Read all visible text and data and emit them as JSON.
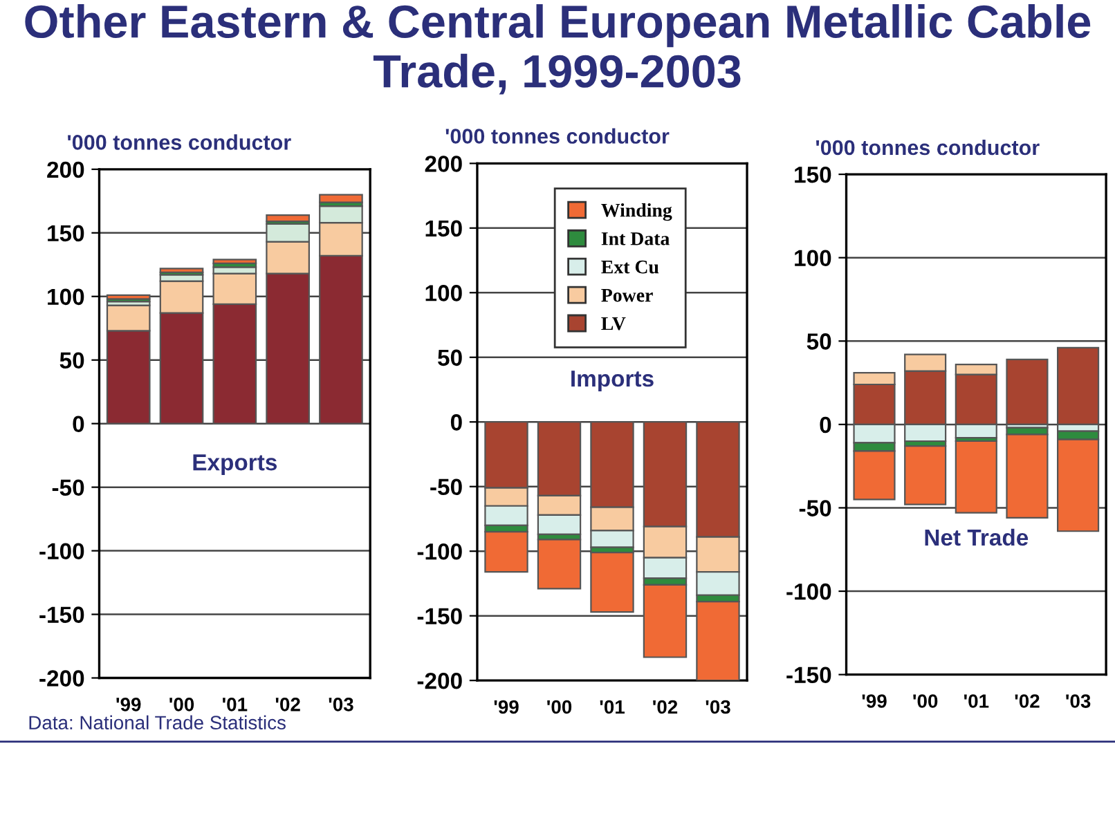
{
  "chart_data": [
    {
      "type": "bar",
      "title": "Other Eastern & Central European Metallic Cable Trade, 1999-2003",
      "ylabel": "'000 tonnes conductor",
      "categories": [
        "'99",
        "'00",
        "'01",
        "'02",
        "'03"
      ],
      "stacked": true,
      "ylim": [
        -200,
        200
      ],
      "yticks": [
        -200,
        -150,
        -100,
        -50,
        0,
        50,
        100,
        150,
        200
      ],
      "grid": "y",
      "legend": false,
      "series": [
        {
          "color": "#8b2a32",
          "values": [
            73,
            87,
            94,
            118,
            132
          ]
        },
        {
          "color": "#f8cba0",
          "values": [
            20,
            25,
            24,
            25,
            26
          ]
        },
        {
          "color": "#d4eadb",
          "values": [
            3,
            5,
            5,
            14,
            13
          ]
        },
        {
          "color": "#2e8b3e",
          "values": [
            2,
            2,
            3,
            2,
            3
          ]
        },
        {
          "color": "#f06a35",
          "values": [
            3,
            3,
            3,
            5,
            6
          ]
        }
      ],
      "annotations": [
        "Exports",
        "Data: National Trade Statistics"
      ]
    },
    {
      "type": "bar",
      "ylabel": "'000 tonnes conductor",
      "categories": [
        "'99",
        "'00",
        "'01",
        "'02",
        "'03"
      ],
      "stacked": true,
      "ylim": [
        -200,
        200
      ],
      "yticks": [
        -200,
        -150,
        -100,
        -50,
        0,
        50,
        100,
        150,
        200
      ],
      "grid": "y",
      "legend": "top",
      "series": [
        {
          "name": "LV",
          "color": "#a84430",
          "values": [
            -51,
            -57,
            -66,
            -81,
            -89
          ]
        },
        {
          "name": "Power",
          "color": "#f8cba0",
          "values": [
            -14,
            -15,
            -18,
            -24,
            -27
          ]
        },
        {
          "name": "Ext Cu",
          "color": "#d8eeea",
          "values": [
            -15,
            -15,
            -13,
            -16,
            -18
          ]
        },
        {
          "name": "Int Data",
          "color": "#2e8b3e",
          "values": [
            -5,
            -4,
            -4,
            -5,
            -5
          ]
        },
        {
          "name": "Winding",
          "color": "#f06a35",
          "values": [
            -31,
            -38,
            -46,
            -56,
            -61
          ]
        }
      ],
      "annotations": [
        "Imports"
      ]
    },
    {
      "type": "bar",
      "ylabel": "'000 tonnes conductor",
      "categories": [
        "'99",
        "'00",
        "'01",
        "'02",
        "'03"
      ],
      "stacked": true,
      "ylim": [
        -150,
        150
      ],
      "yticks": [
        -150,
        -100,
        -50,
        0,
        50,
        100,
        150
      ],
      "grid": "y",
      "legend": false,
      "series": [
        {
          "color": "#a84430",
          "values": [
            24,
            32,
            30,
            39,
            46
          ]
        },
        {
          "color": "#f8cba0",
          "values": [
            7,
            10,
            6,
            null,
            null
          ]
        },
        {
          "color": "#d8eeea",
          "values": [
            -11,
            -10,
            -8,
            -2,
            -4
          ]
        },
        {
          "color": "#2e8b3e",
          "values": [
            -5,
            -3,
            -2,
            -4,
            -5
          ]
        },
        {
          "color": "#f06a35",
          "values": [
            -29,
            -35,
            -43,
            -50,
            -55
          ]
        }
      ],
      "annotations": [
        "Net Trade"
      ]
    }
  ]
}
